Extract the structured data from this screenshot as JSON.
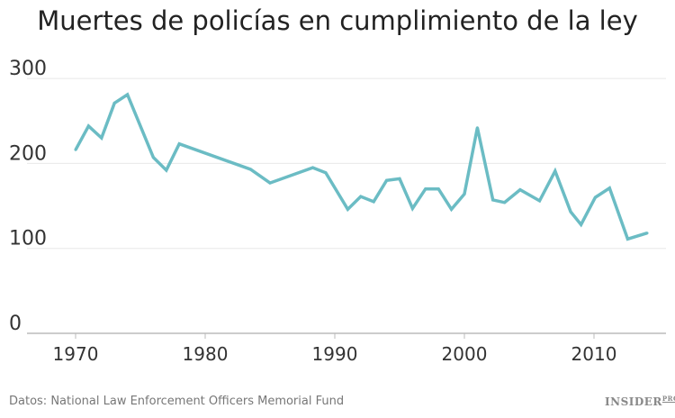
{
  "chart_data": {
    "type": "line",
    "title": "Muertes de policías en cumplimiento de la ley",
    "xlabel": "",
    "ylabel": "",
    "xlim": [
      1966,
      2020
    ],
    "ylim": [
      0,
      300
    ],
    "xticks": [
      1970,
      1980,
      1990,
      2000,
      2010
    ],
    "yticks": [
      0,
      100,
      200,
      300
    ],
    "grid": "horizontal",
    "line_color": "#6bbcc4",
    "x": [
      1970,
      1971,
      1972,
      1973,
      1974,
      1976,
      1977,
      1978,
      1983.5,
      1985,
      1988.3,
      1989.3,
      1991,
      1992,
      1993,
      1994,
      1995,
      1996,
      1997,
      1998,
      1999,
      2000,
      2001,
      2002.2,
      2003.1,
      2004.3,
      2005.8,
      2007,
      2008.2,
      2009,
      2010.1,
      2011.2,
      2012.6,
      2014.1
    ],
    "y": [
      216,
      244,
      230,
      271,
      281,
      207,
      192,
      223,
      193,
      177,
      195,
      189,
      146,
      161,
      155,
      180,
      182,
      147,
      170,
      170,
      146,
      164,
      242,
      157,
      154,
      169,
      156,
      191,
      143,
      128,
      160,
      171,
      111,
      118
    ]
  },
  "source": "Datos: National Law Enforcement Officers Memorial Fund",
  "logo": {
    "text": "INSIDER",
    "sup": "PRO"
  }
}
